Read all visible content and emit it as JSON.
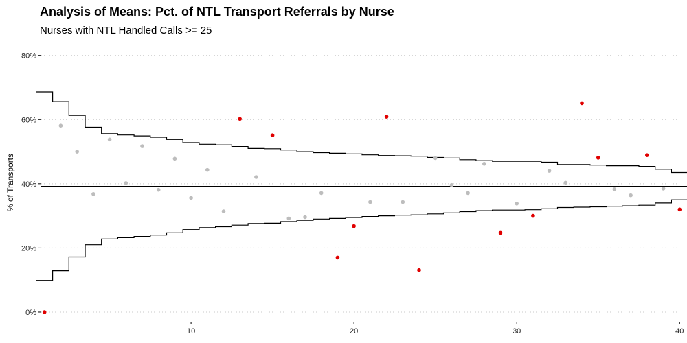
{
  "chart_data": {
    "type": "scatter",
    "title": "Analysis of Means: Pct. of NTL Transport Referrals by Nurse",
    "subtitle": "Nurses with NTL Handled Calls >= 25",
    "xlabel": "",
    "ylabel": "% of Transports",
    "xlim": [
      0.8,
      40.2
    ],
    "ylim": [
      -3,
      84
    ],
    "x_ticks": [
      10,
      20,
      30,
      40
    ],
    "y_ticks": [
      0,
      20,
      40,
      60,
      80
    ],
    "x_tick_labels": [
      "10",
      "20",
      "30",
      "40"
    ],
    "y_tick_labels": [
      "0%",
      "20%",
      "40%",
      "60%",
      "80%"
    ],
    "center_line": 39.2,
    "grid": "horizontal dotted",
    "legend": "none",
    "colors": {
      "in_control": "#bdbdbd",
      "out_of_control": "#e00000",
      "limits": "#000000"
    },
    "x": [
      1,
      2,
      3,
      4,
      5,
      6,
      7,
      8,
      9,
      10,
      11,
      12,
      13,
      14,
      15,
      16,
      17,
      18,
      19,
      20,
      21,
      22,
      23,
      24,
      25,
      26,
      27,
      28,
      29,
      30,
      31,
      32,
      33,
      34,
      35,
      36,
      37,
      38,
      39,
      40
    ],
    "y": [
      0,
      58.1,
      50,
      36.8,
      53.8,
      40.2,
      51.7,
      38.1,
      47.8,
      35.6,
      44.3,
      31.4,
      60.2,
      42.1,
      55.1,
      29.2,
      29.6,
      37.1,
      17,
      26.8,
      34.3,
      60.9,
      34.3,
      13.1,
      48,
      39.6,
      37.1,
      46.2,
      24.7,
      33.8,
      30,
      44,
      40.3,
      65.1,
      48.1,
      38.3,
      36.4,
      48.9,
      38.5,
      32
    ],
    "out_of_control": [
      1,
      13,
      15,
      19,
      20,
      22,
      24,
      29,
      31,
      34,
      35,
      38,
      40
    ],
    "upper_limit": [
      68.6,
      65.6,
      61.3,
      57.6,
      55.6,
      55.2,
      54.9,
      54.5,
      53.8,
      52.8,
      52.3,
      52.1,
      51.6,
      51,
      50.9,
      50.5,
      50,
      49.7,
      49.5,
      49.3,
      49,
      48.8,
      48.7,
      48.6,
      48.2,
      48,
      47.5,
      47.2,
      47,
      47,
      47,
      46.7,
      46,
      46,
      45.8,
      45.6,
      45.6,
      45.4,
      44.5,
      43.5
    ],
    "lower_limit": [
      9.9,
      12.9,
      17.2,
      21,
      22.8,
      23.2,
      23.6,
      24,
      24.7,
      25.7,
      26.3,
      26.6,
      27.1,
      27.6,
      27.7,
      28.2,
      28.6,
      29,
      29.2,
      29.5,
      29.8,
      30,
      30.2,
      30.3,
      30.6,
      30.9,
      31.3,
      31.6,
      31.8,
      31.8,
      31.9,
      32.2,
      32.6,
      32.7,
      32.8,
      33,
      33.1,
      33.3,
      34,
      35
    ]
  }
}
